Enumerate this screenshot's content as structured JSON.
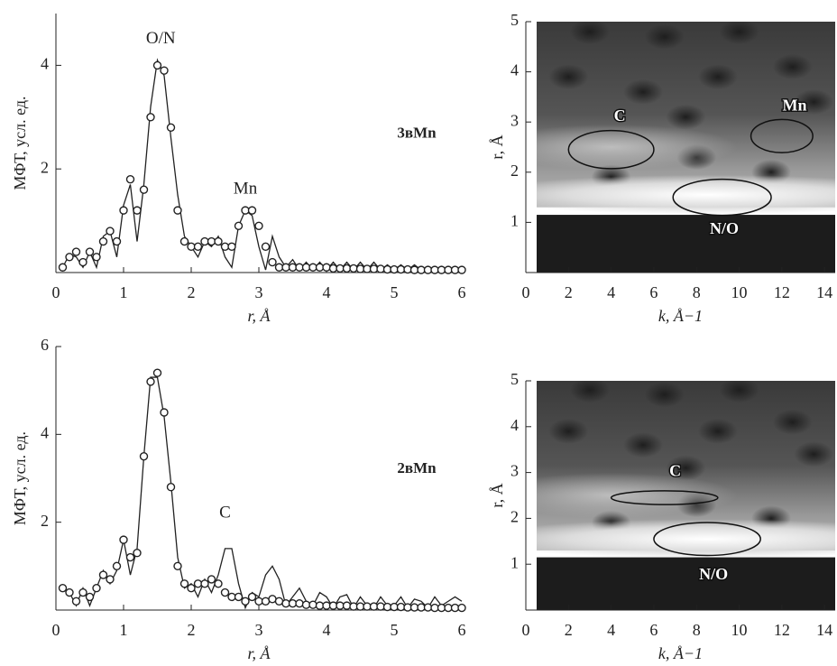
{
  "chart_data": [
    {
      "type": "line",
      "label": "3вMn",
      "xlabel": "r, Å",
      "ylabel": "МФТ, усл. ед.",
      "xlim": [
        0,
        6
      ],
      "ylim": [
        0,
        5
      ],
      "xticks": [
        0,
        1,
        2,
        3,
        4,
        5,
        6
      ],
      "yticks": [
        2,
        4
      ],
      "x": [
        0.1,
        0.2,
        0.3,
        0.4,
        0.5,
        0.6,
        0.7,
        0.8,
        0.9,
        1.0,
        1.1,
        1.2,
        1.3,
        1.4,
        1.5,
        1.6,
        1.7,
        1.8,
        1.9,
        2.0,
        2.1,
        2.2,
        2.3,
        2.4,
        2.5,
        2.6,
        2.7,
        2.8,
        2.9,
        3.0,
        3.1,
        3.2,
        3.3,
        3.4,
        3.5,
        3.6,
        3.7,
        3.8,
        3.9,
        4.0,
        4.1,
        4.2,
        4.3,
        4.4,
        4.5,
        4.6,
        4.7,
        4.8,
        4.9,
        5.0,
        5.1,
        5.2,
        5.3,
        5.4,
        5.5,
        5.6,
        5.7,
        5.8,
        5.9,
        6.0
      ],
      "series": [
        {
          "style": "markers",
          "color": "#222222",
          "values": [
            0.1,
            0.3,
            0.4,
            0.2,
            0.4,
            0.3,
            0.6,
            0.8,
            0.6,
            1.2,
            1.8,
            1.2,
            1.6,
            3.0,
            4.0,
            3.9,
            2.8,
            1.2,
            0.6,
            0.5,
            0.5,
            0.6,
            0.6,
            0.6,
            0.5,
            0.5,
            0.9,
            1.2,
            1.2,
            0.9,
            0.5,
            0.2,
            0.1,
            0.1,
            0.1,
            0.1,
            0.1,
            0.1,
            0.1,
            0.1,
            0.08,
            0.08,
            0.08,
            0.08,
            0.07,
            0.07,
            0.07,
            0.07,
            0.06,
            0.06,
            0.06,
            0.06,
            0.05,
            0.05,
            0.05,
            0.05,
            0.05,
            0.05,
            0.05,
            0.05
          ]
        },
        {
          "style": "line",
          "color": "#222222",
          "values": [
            0.1,
            0.35,
            0.3,
            0.1,
            0.4,
            0.1,
            0.7,
            0.8,
            0.3,
            1.3,
            1.7,
            0.6,
            1.7,
            3.2,
            4.1,
            3.8,
            2.6,
            1.5,
            0.7,
            0.5,
            0.3,
            0.6,
            0.5,
            0.7,
            0.3,
            0.1,
            0.9,
            1.2,
            1.1,
            0.5,
            0.05,
            0.7,
            0.3,
            0.1,
            0.25,
            0.05,
            0.2,
            0.05,
            0.2,
            0.05,
            0.2,
            0.05,
            0.2,
            0.05,
            0.2,
            0.05,
            0.2,
            0.05,
            0.15,
            0.05,
            0.15,
            0.05,
            0.15,
            0.05,
            0.12,
            0.05,
            0.12,
            0.05,
            0.1,
            0.05
          ]
        }
      ],
      "annotations": [
        {
          "text": "O/N",
          "x": 1.55,
          "y": 4.5
        },
        {
          "text": "Mn",
          "x": 2.8,
          "y": 1.6
        }
      ]
    },
    {
      "type": "wavelet",
      "xlabel": "k, Å−1",
      "ylabel": "r, Å",
      "xlim": [
        0,
        14.5
      ],
      "ylim": [
        0,
        5
      ],
      "xticks": [
        0,
        2,
        4,
        6,
        8,
        10,
        12,
        14
      ],
      "yticks": [
        1,
        2,
        3,
        4,
        5
      ],
      "annotations": [
        {
          "text": "C",
          "x": 4.4,
          "y": 3.1
        },
        {
          "text": "Mn",
          "x": 12.6,
          "y": 3.3
        },
        {
          "text": "N/O",
          "x": 9.3,
          "y": 0.85
        }
      ]
    },
    {
      "type": "line",
      "label": "2вMn",
      "xlabel": "r, Å",
      "ylabel": "МФТ, усл. ед.",
      "xlim": [
        0,
        6
      ],
      "ylim": [
        0,
        6
      ],
      "xticks": [
        0,
        1,
        2,
        3,
        4,
        5,
        6
      ],
      "yticks": [
        2,
        4,
        6
      ],
      "x": [
        0.1,
        0.2,
        0.3,
        0.4,
        0.5,
        0.6,
        0.7,
        0.8,
        0.9,
        1.0,
        1.1,
        1.2,
        1.3,
        1.4,
        1.5,
        1.6,
        1.7,
        1.8,
        1.9,
        2.0,
        2.1,
        2.2,
        2.3,
        2.4,
        2.5,
        2.6,
        2.7,
        2.8,
        2.9,
        3.0,
        3.1,
        3.2,
        3.3,
        3.4,
        3.5,
        3.6,
        3.7,
        3.8,
        3.9,
        4.0,
        4.1,
        4.2,
        4.3,
        4.4,
        4.5,
        4.6,
        4.7,
        4.8,
        4.9,
        5.0,
        5.1,
        5.2,
        5.3,
        5.4,
        5.5,
        5.6,
        5.7,
        5.8,
        5.9,
        6.0
      ],
      "series": [
        {
          "style": "markers",
          "color": "#222222",
          "values": [
            0.5,
            0.4,
            0.2,
            0.4,
            0.3,
            0.5,
            0.8,
            0.7,
            1.0,
            1.6,
            1.2,
            1.3,
            3.5,
            5.2,
            5.4,
            4.5,
            2.8,
            1.0,
            0.6,
            0.5,
            0.6,
            0.6,
            0.7,
            0.6,
            0.4,
            0.3,
            0.3,
            0.2,
            0.3,
            0.2,
            0.2,
            0.25,
            0.2,
            0.15,
            0.15,
            0.15,
            0.12,
            0.12,
            0.1,
            0.1,
            0.1,
            0.1,
            0.1,
            0.08,
            0.08,
            0.08,
            0.08,
            0.08,
            0.07,
            0.07,
            0.07,
            0.06,
            0.06,
            0.06,
            0.06,
            0.05,
            0.05,
            0.05,
            0.05,
            0.05
          ]
        },
        {
          "style": "line",
          "color": "#222222",
          "values": [
            0.5,
            0.4,
            0.1,
            0.5,
            0.1,
            0.5,
            0.9,
            0.6,
            0.9,
            1.6,
            0.8,
            1.4,
            3.5,
            5.3,
            5.3,
            4.4,
            2.9,
            1.2,
            0.5,
            0.6,
            0.3,
            0.7,
            0.4,
            0.8,
            1.4,
            1.4,
            0.6,
            0.05,
            0.4,
            0.3,
            0.8,
            1.0,
            0.7,
            0.1,
            0.3,
            0.5,
            0.2,
            0.1,
            0.4,
            0.3,
            0.05,
            0.3,
            0.35,
            0.05,
            0.3,
            0.1,
            0.05,
            0.3,
            0.1,
            0.1,
            0.3,
            0.05,
            0.25,
            0.2,
            0.05,
            0.3,
            0.1,
            0.2,
            0.3,
            0.2
          ]
        }
      ],
      "annotations": [
        {
          "text": "C",
          "x": 2.5,
          "y": 2.2
        }
      ]
    },
    {
      "type": "wavelet",
      "xlabel": "k, Å−1",
      "ylabel": "r, Å",
      "xlim": [
        0,
        14.5
      ],
      "ylim": [
        0,
        5
      ],
      "xticks": [
        0,
        2,
        4,
        6,
        8,
        10,
        12,
        14
      ],
      "yticks": [
        1,
        2,
        3,
        4,
        5
      ],
      "annotations": [
        {
          "text": "C",
          "x": 7.0,
          "y": 3.0
        },
        {
          "text": "N/O",
          "x": 8.8,
          "y": 0.75
        }
      ]
    }
  ]
}
